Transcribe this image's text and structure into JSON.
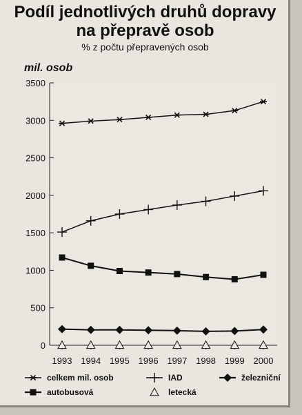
{
  "header": {
    "title_line1": "Podíl jednotlivých druhů dopravy",
    "title_line2": "na přepravě osob",
    "subtitle": "% z počtu přepravených osob"
  },
  "chart_data": {
    "type": "line",
    "ylabel": "mil. osob",
    "xlabel": "",
    "ylim": [
      0,
      3500
    ],
    "yticks": [
      0,
      500,
      1000,
      1500,
      2000,
      2500,
      3000,
      3500
    ],
    "categories": [
      "1993",
      "1994",
      "1995",
      "1996",
      "1997",
      "1998",
      "1999",
      "2000"
    ],
    "grid": false,
    "legend_position": "bottom",
    "series": [
      {
        "name": "celkem mil. osob",
        "marker": "asterisk",
        "values": [
          2960,
          2990,
          3010,
          3040,
          3070,
          3080,
          3130,
          3250
        ]
      },
      {
        "name": "IAD",
        "marker": "plus",
        "values": [
          1510,
          1660,
          1750,
          1810,
          1870,
          1920,
          1990,
          2060
        ]
      },
      {
        "name": "železniční",
        "marker": "diamond",
        "values": [
          215,
          205,
          205,
          200,
          195,
          185,
          190,
          210
        ]
      },
      {
        "name": "autobusová",
        "marker": "square",
        "values": [
          1170,
          1060,
          990,
          970,
          950,
          910,
          880,
          940
        ]
      },
      {
        "name": "letecká",
        "marker": "triangle",
        "values": [
          2,
          2,
          2,
          2,
          2,
          2,
          2,
          2
        ]
      }
    ]
  }
}
